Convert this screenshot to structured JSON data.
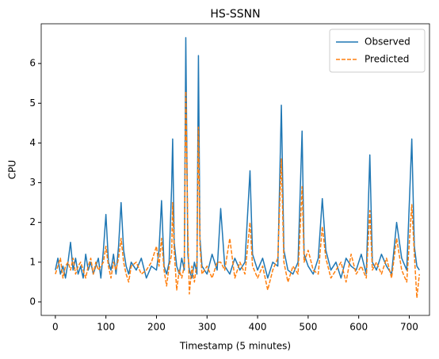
{
  "chart_data": {
    "type": "line",
    "title": "HS-SSNN",
    "x_label": "Timestamp (5 minutes)",
    "y_label": "CPU",
    "x": [
      0,
      5,
      10,
      15,
      20,
      25,
      30,
      35,
      40,
      45,
      50,
      55,
      60,
      65,
      70,
      75,
      80,
      85,
      90,
      95,
      100,
      105,
      110,
      115,
      120,
      125,
      130,
      135,
      140,
      145,
      150,
      160,
      170,
      180,
      190,
      200,
      205,
      210,
      215,
      220,
      225,
      230,
      232,
      235,
      240,
      245,
      250,
      255,
      258,
      262,
      265,
      270,
      275,
      280,
      283,
      286,
      290,
      300,
      310,
      320,
      327,
      335,
      345,
      355,
      365,
      375,
      385,
      390,
      400,
      410,
      420,
      430,
      440,
      447,
      452,
      460,
      470,
      480,
      488,
      492,
      500,
      510,
      520,
      528,
      535,
      545,
      555,
      565,
      575,
      585,
      595,
      605,
      615,
      622,
      627,
      635,
      645,
      655,
      665,
      675,
      685,
      695,
      705,
      710,
      715,
      720
    ],
    "series": [
      {
        "name": "Observed",
        "color": "#1f77b4",
        "dash": false,
        "values": [
          0.8,
          1.1,
          0.7,
          0.9,
          0.6,
          1.0,
          1.5,
          0.8,
          1.1,
          0.7,
          0.9,
          0.6,
          1.2,
          0.8,
          1.0,
          0.7,
          0.9,
          1.1,
          0.6,
          1.3,
          2.2,
          1.0,
          0.8,
          1.2,
          0.7,
          1.4,
          2.5,
          1.3,
          0.9,
          0.7,
          1.0,
          0.8,
          1.1,
          0.6,
          0.9,
          0.8,
          1.3,
          2.55,
          0.9,
          0.7,
          1.0,
          2.9,
          4.1,
          1.5,
          0.9,
          0.7,
          1.1,
          0.8,
          6.65,
          1.2,
          0.8,
          0.6,
          1.0,
          0.7,
          6.2,
          1.6,
          0.9,
          0.7,
          1.2,
          0.8,
          2.35,
          0.9,
          0.7,
          1.1,
          0.8,
          1.0,
          3.3,
          1.2,
          0.8,
          1.1,
          0.6,
          1.0,
          0.9,
          4.95,
          1.3,
          0.8,
          0.7,
          1.0,
          4.3,
          1.2,
          0.9,
          0.7,
          1.1,
          2.6,
          1.3,
          0.8,
          1.0,
          0.6,
          1.1,
          0.9,
          0.8,
          1.2,
          0.7,
          3.7,
          1.0,
          0.8,
          1.2,
          0.9,
          0.7,
          2.0,
          1.1,
          0.8,
          4.1,
          1.4,
          0.9,
          0.8
        ]
      },
      {
        "name": "Predicted",
        "color": "#ff7f0e",
        "dash": true,
        "values": [
          0.7,
          0.9,
          1.1,
          0.6,
          0.9,
          1.0,
          0.8,
          1.1,
          0.7,
          0.9,
          1.0,
          0.8,
          0.6,
          0.9,
          1.1,
          0.7,
          1.0,
          0.8,
          0.9,
          1.0,
          1.4,
          0.9,
          0.6,
          1.0,
          0.8,
          1.1,
          1.6,
          1.0,
          0.7,
          0.5,
          0.9,
          1.0,
          0.7,
          0.8,
          1.0,
          1.4,
          0.9,
          1.6,
          0.8,
          0.4,
          0.9,
          1.2,
          2.5,
          1.3,
          0.3,
          0.8,
          0.6,
          0.9,
          5.3,
          1.8,
          0.2,
          0.9,
          0.5,
          1.0,
          4.4,
          1.4,
          0.7,
          0.9,
          0.6,
          1.0,
          1.0,
          0.8,
          1.6,
          0.6,
          1.0,
          0.7,
          2.0,
          0.9,
          0.6,
          0.9,
          0.3,
          0.8,
          1.1,
          3.6,
          1.0,
          0.5,
          0.9,
          0.7,
          2.9,
          1.0,
          1.3,
          0.8,
          0.7,
          1.9,
          1.1,
          0.6,
          0.8,
          1.0,
          0.5,
          1.2,
          0.7,
          0.9,
          0.6,
          2.3,
          0.8,
          1.0,
          0.7,
          1.1,
          0.6,
          1.6,
          0.8,
          0.5,
          2.45,
          1.2,
          0.1,
          0.7
        ]
      }
    ],
    "xlim": [
      -28,
      740
    ],
    "ylim": [
      -0.34,
      7.0
    ],
    "xticks": [
      0,
      100,
      200,
      300,
      400,
      500,
      600,
      700
    ],
    "yticks": [
      0,
      1,
      2,
      3,
      4,
      5,
      6
    ],
    "legend": "upper right"
  }
}
